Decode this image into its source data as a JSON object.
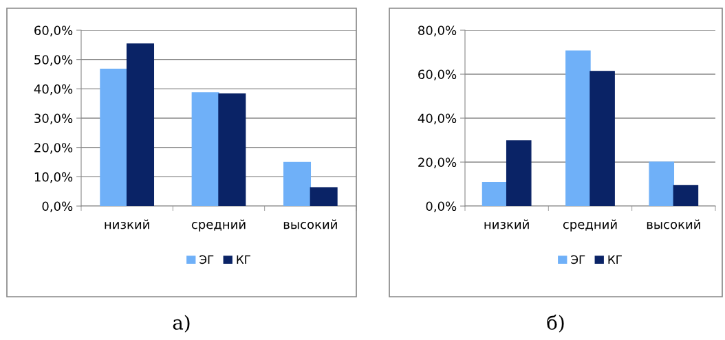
{
  "chart_data": [
    {
      "type": "bar",
      "categories": [
        "низкий",
        "средний",
        "высокий"
      ],
      "series": [
        {
          "name": "ЭГ",
          "color": "#6fb0f8",
          "values": [
            46.7,
            38.7,
            14.9
          ]
        },
        {
          "name": "КГ",
          "color": "#0a2366",
          "values": [
            55.3,
            38.3,
            6.3
          ]
        }
      ],
      "ylim": [
        0,
        60
      ],
      "yticks": [
        {
          "value": 0,
          "label": "0,0%"
        },
        {
          "value": 10,
          "label": "10,0%"
        },
        {
          "value": 20,
          "label": "20,0%"
        },
        {
          "value": 30,
          "label": "30,0%"
        },
        {
          "value": 40,
          "label": "40,0%"
        },
        {
          "value": 50,
          "label": "50,0%"
        },
        {
          "value": 60,
          "label": "60,0%"
        }
      ],
      "grid": "y",
      "legend": "bottom",
      "annotations": [
        "а)"
      ]
    },
    {
      "type": "bar",
      "categories": [
        "низкий",
        "средний",
        "высокий"
      ],
      "series": [
        {
          "name": "ЭГ",
          "color": "#6fb0f8",
          "values": [
            10.7,
            70.6,
            20.0
          ]
        },
        {
          "name": "КГ",
          "color": "#0a2366",
          "values": [
            29.7,
            61.3,
            9.4
          ]
        }
      ],
      "ylim": [
        0,
        80
      ],
      "yticks": [
        {
          "value": 0,
          "label": "0,0%"
        },
        {
          "value": 20,
          "label": "20,0%"
        },
        {
          "value": 40,
          "label": "40,0%"
        },
        {
          "value": 60,
          "label": "60,0%"
        },
        {
          "value": 80,
          "label": "80,0%"
        }
      ],
      "grid": "y",
      "legend": "bottom",
      "annotations": [
        "б)"
      ]
    }
  ]
}
